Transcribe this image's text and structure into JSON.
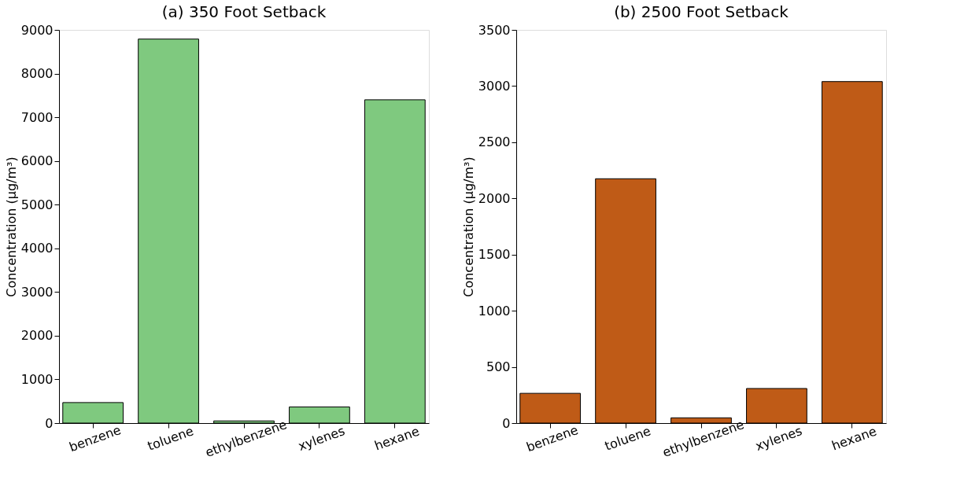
{
  "chart_data": [
    {
      "type": "bar",
      "title": "(a) 350 Foot Setback",
      "categories": [
        "benzene",
        "toluene",
        "ethylbenzene",
        "xylenes",
        "hexane"
      ],
      "values": [
        470,
        8790,
        50,
        370,
        7400
      ],
      "color": "#7fc97f",
      "ylabel": "Concentration (μg/m³)",
      "ylim": [
        0,
        9000
      ],
      "yticks": [
        0,
        1000,
        2000,
        3000,
        4000,
        5000,
        6000,
        7000,
        8000,
        9000
      ],
      "grid": false
    },
    {
      "type": "bar",
      "title": "(b) 2500 Foot Setback",
      "categories": [
        "benzene",
        "toluene",
        "ethylbenzene",
        "xylenes",
        "hexane"
      ],
      "values": [
        265,
        2175,
        47,
        308,
        3040
      ],
      "color": "#bf5b17",
      "ylabel": "Concentration (μg/m³)",
      "ylim": [
        0,
        3500
      ],
      "yticks": [
        0,
        500,
        1000,
        1500,
        2000,
        2500,
        3000,
        3500
      ],
      "grid": false
    }
  ]
}
